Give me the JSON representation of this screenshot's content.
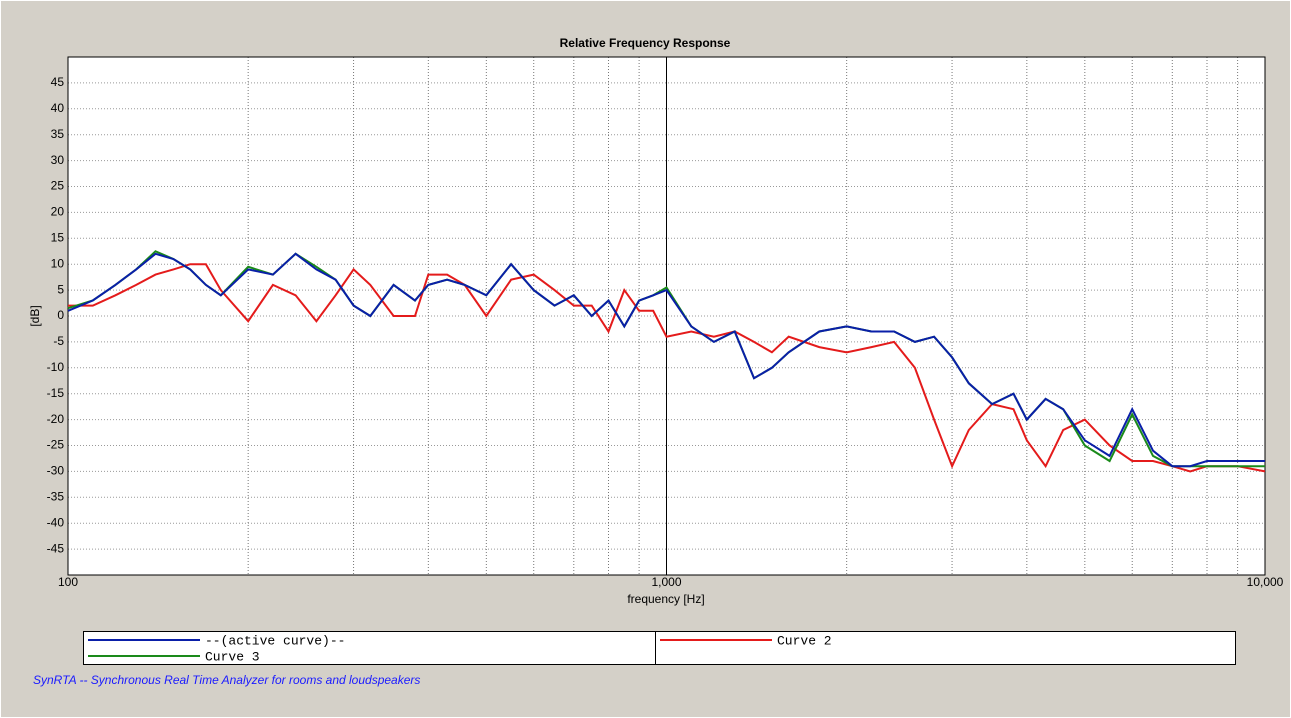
{
  "chart_data": {
    "type": "line",
    "title": "Relative Frequency Response",
    "xlabel": "frequency [Hz]",
    "ylabel": "[dB]",
    "xscale": "log",
    "xlim": [
      100,
      10000
    ],
    "xticks": [
      100,
      {
        "value": 1000,
        "label": "1,000"
      },
      {
        "value": 10000,
        "label": "10,000"
      }
    ],
    "xminorticks": [
      200,
      300,
      400,
      500,
      600,
      700,
      800,
      900,
      2000,
      3000,
      4000,
      5000,
      6000,
      7000,
      8000,
      9000
    ],
    "ylim": [
      -50,
      50
    ],
    "yticks": [
      -45,
      -40,
      -35,
      -30,
      -25,
      -20,
      -15,
      -10,
      -5,
      0,
      5,
      10,
      15,
      20,
      25,
      30,
      35,
      40,
      45
    ],
    "grid": true,
    "x": [
      100,
      110,
      120,
      130,
      140,
      150,
      160,
      170,
      180,
      200,
      220,
      240,
      260,
      280,
      300,
      320,
      350,
      380,
      400,
      430,
      460,
      500,
      550,
      600,
      650,
      700,
      750,
      800,
      850,
      900,
      950,
      1000,
      1100,
      1200,
      1300,
      1400,
      1500,
      1600,
      1800,
      2000,
      2200,
      2400,
      2600,
      2800,
      3000,
      3200,
      3500,
      3800,
      4000,
      4300,
      4600,
      5000,
      5500,
      6000,
      6500,
      7000,
      7500,
      8000,
      9000,
      10000
    ],
    "series": [
      {
        "name": "--(active curve)--",
        "color": "#0a1fa8",
        "values": [
          1,
          3,
          6,
          9,
          12,
          11,
          9,
          6,
          4,
          9,
          8,
          12,
          9,
          7,
          2,
          0,
          6,
          3,
          6,
          7,
          6,
          4,
          10,
          5,
          2,
          4,
          0,
          3,
          -2,
          3,
          4,
          5,
          -2,
          -5,
          -3,
          -12,
          -10,
          -7,
          -3,
          -2,
          -3,
          -3,
          -5,
          -4,
          -8,
          -13,
          -17,
          -15,
          -20,
          -16,
          -18,
          -24,
          -27,
          -18,
          -26,
          -29,
          -29,
          -28,
          -28,
          -28
        ]
      },
      {
        "name": "Curve 2",
        "color": "#e41b1b",
        "values": [
          2,
          2,
          4,
          6,
          8,
          9,
          10,
          10,
          5,
          -1,
          6,
          4,
          -1,
          4,
          9,
          6,
          0,
          0,
          8,
          8,
          6,
          0,
          7,
          8,
          5,
          2,
          2,
          -3,
          5,
          1,
          1,
          -4,
          -3,
          -4,
          -3,
          -5,
          -7,
          -4,
          -6,
          -7,
          -6,
          -5,
          -10,
          -20,
          -29,
          -22,
          -17,
          -18,
          -24,
          -29,
          -22,
          -20,
          -25,
          -28,
          -28,
          -29,
          -30,
          -29,
          -29,
          -30
        ]
      },
      {
        "name": "Curve 3",
        "color": "#1a8a1a",
        "values": [
          1.5,
          3,
          6,
          9,
          12.5,
          11,
          9,
          6,
          4,
          9.5,
          8,
          12,
          9.5,
          7,
          2,
          0,
          6,
          3,
          6,
          7,
          6,
          4,
          10,
          5,
          2,
          4,
          0,
          3,
          -2,
          3,
          4,
          5.5,
          -2,
          -5,
          -3,
          -12,
          -10,
          -7,
          -3,
          -2,
          -3,
          -3,
          -5,
          -4,
          -8,
          -13,
          -17,
          -15,
          -20,
          -16,
          -18,
          -25,
          -28,
          -19,
          -27,
          -29,
          -29,
          -29,
          -29,
          -29
        ]
      }
    ]
  },
  "footer": "SynRTA -- Synchronous Real Time Analyzer for rooms and loudspeakers"
}
